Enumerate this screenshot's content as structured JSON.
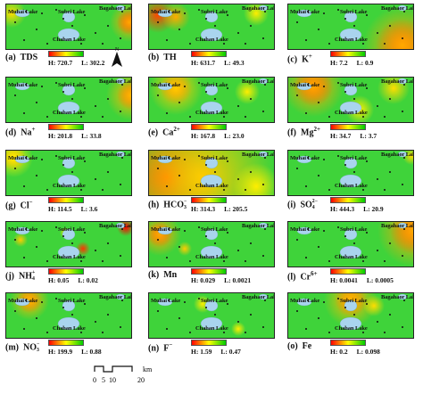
{
  "lakes": {
    "muhai": "Muhai Lake",
    "subei": "Subei Lake",
    "bagahaor": "Bagahaor Lake",
    "chahan": "Chahan Lake"
  },
  "panels": [
    {
      "id": "a",
      "label": "(a)",
      "param": "TDS",
      "sup": "",
      "sub": "",
      "high": "H: 720.7",
      "low": "L: 302.2",
      "low_color": "#ff0000",
      "high_color": "#00cc00"
    },
    {
      "id": "b",
      "label": "(b)",
      "param": "TH",
      "sup": "",
      "sub": "",
      "high": "H: 631.7",
      "low": "L: 49.3",
      "low_color": "#ff0000",
      "high_color": "#00cc00"
    },
    {
      "id": "c",
      "label": "(c)",
      "param": "K",
      "sup": "+",
      "sub": "",
      "high": "H: 7.2",
      "low": "L: 0.9",
      "low_color": "#ff0000",
      "high_color": "#00cc00"
    },
    {
      "id": "d",
      "label": "(d)",
      "param": "Na",
      "sup": "+",
      "sub": "",
      "high": "H: 201.8",
      "low": "L: 33.8",
      "low_color": "#ff0000",
      "high_color": "#00cc00"
    },
    {
      "id": "e",
      "label": "(e)",
      "param": "Ca",
      "sup": "2+",
      "sub": "",
      "high": "H: 167.8",
      "low": "L: 23.0",
      "low_color": "#ff0000",
      "high_color": "#00cc00"
    },
    {
      "id": "f",
      "label": "(f)",
      "param": "Mg",
      "sup": "2+",
      "sub": "",
      "high": "H: 34.7",
      "low": "L: 3.7",
      "low_color": "#ff0000",
      "high_color": "#00cc00"
    },
    {
      "id": "g",
      "label": "(g)",
      "param": "Cl",
      "sup": "−",
      "sub": "",
      "high": "H: 114.5",
      "low": "L: 3.6",
      "low_color": "#ff0000",
      "high_color": "#00cc00"
    },
    {
      "id": "h",
      "label": "(h)",
      "param": "HCO",
      "sup": "−",
      "sub": "3",
      "high": "H: 314.3",
      "low": "L: 205.5",
      "low_color": "#ff0000",
      "high_color": "#00cc00"
    },
    {
      "id": "i",
      "label": "(i)",
      "param": "SO",
      "sup": "2−",
      "sub": "4",
      "high": "H: 444.3",
      "low": "L: 20.9",
      "low_color": "#ff0000",
      "high_color": "#00cc00"
    },
    {
      "id": "j",
      "label": "(j)",
      "param": "NH",
      "sup": "+",
      "sub": "4",
      "high": "H: 0.05",
      "low": "L: 0.02",
      "low_color": "#ff0000",
      "high_color": "#00cc00"
    },
    {
      "id": "k",
      "label": "(k)",
      "param": "Mn",
      "sup": "",
      "sub": "",
      "high": "H: 0.029",
      "low": "L: 0.0021",
      "low_color": "#ff0000",
      "high_color": "#00cc00"
    },
    {
      "id": "l",
      "label": "(l)",
      "param": "Cr",
      "sup": "6+",
      "sub": "",
      "high": "H: 0.0041",
      "low": "L: 0.0005",
      "low_color": "#ff0000",
      "high_color": "#00cc00"
    },
    {
      "id": "m",
      "label": "(m)",
      "param": "NO",
      "sup": "−",
      "sub": "3",
      "high": "H: 199.9",
      "low": "L: 0.88",
      "low_color": "#ff0000",
      "high_color": "#00cc00"
    },
    {
      "id": "n",
      "label": "(n)",
      "param": "F",
      "sup": "−",
      "sub": "",
      "high": "H: 1.59",
      "low": "L: 0.47",
      "low_color": "#ff0000",
      "high_color": "#00cc00"
    },
    {
      "id": "o",
      "label": "(o)",
      "param": "Fe",
      "sup": "",
      "sub": "",
      "high": "H: 0.2",
      "low": "L: 0.098",
      "low_color": "#ff0000",
      "high_color": "#00cc00"
    }
  ],
  "north_label": "N",
  "scale": {
    "ticks": [
      "0",
      "5",
      "10",
      "20"
    ],
    "unit": "km"
  },
  "colors": {
    "high": "#ff0000",
    "mid": "#ffff00",
    "low": "#00cc00",
    "lake": "#a9d4ee",
    "points": "#111111"
  }
}
